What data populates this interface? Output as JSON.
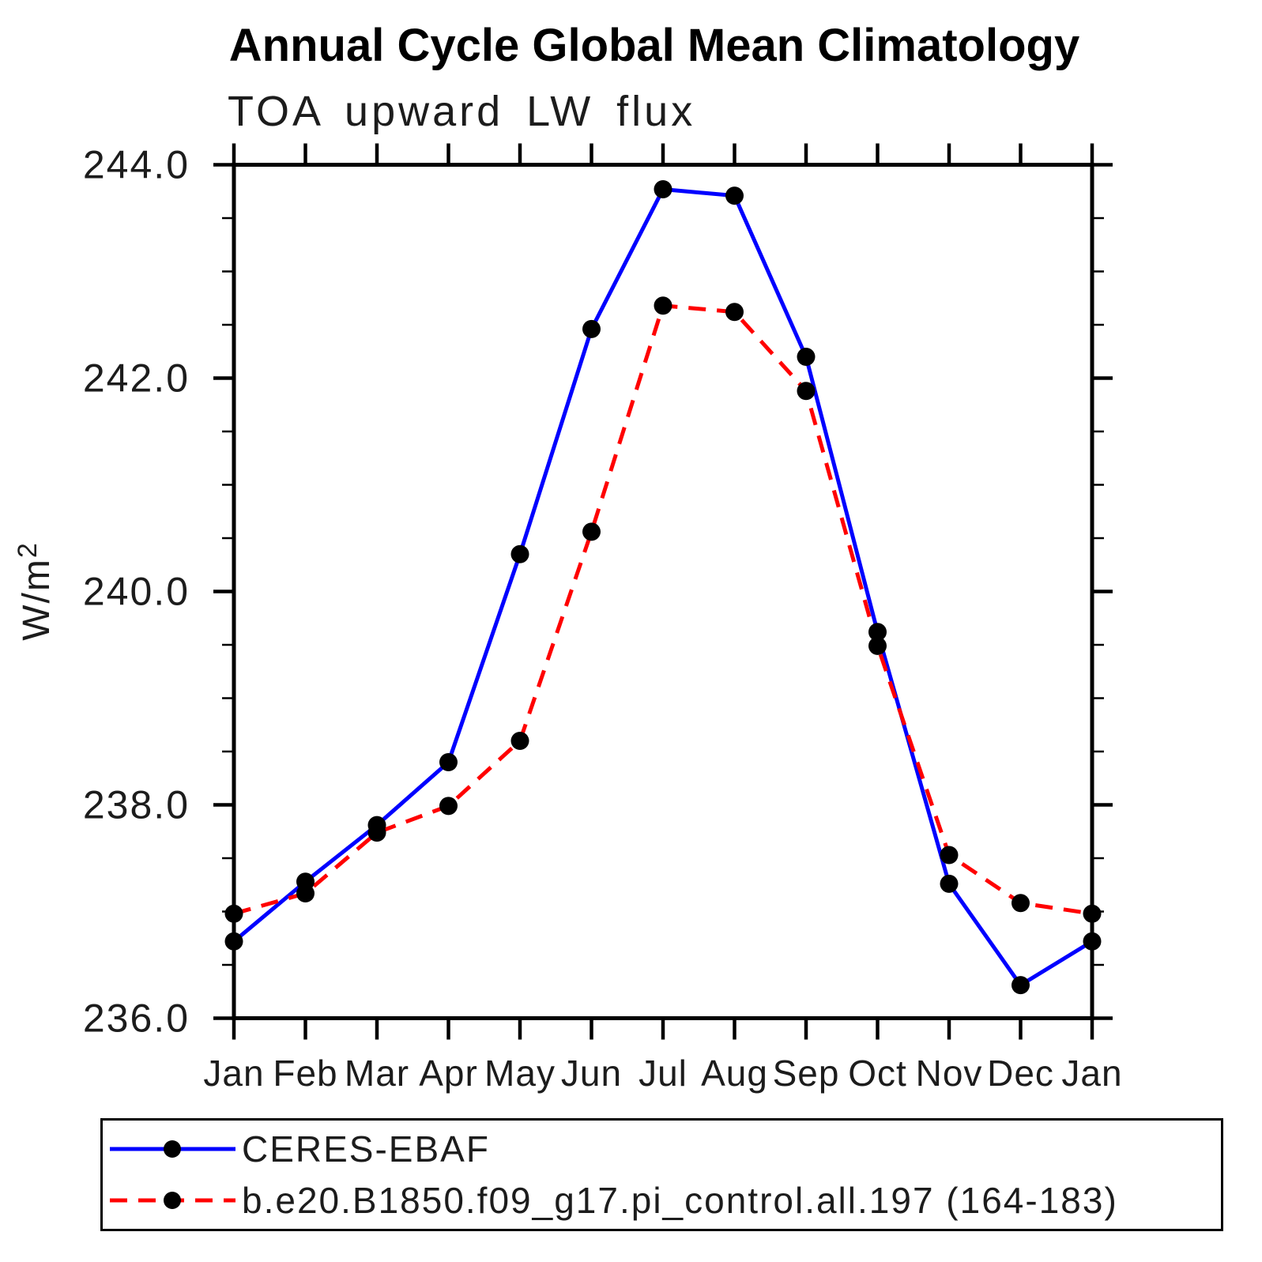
{
  "title": "Annual Cycle Global Mean Climatology",
  "subtitle": "TOA upward LW flux",
  "chart_data": {
    "type": "line",
    "title": "Annual Cycle Global Mean Climatology",
    "subtitle": "TOA upward LW flux",
    "xlabel": "",
    "ylabel": "W/m²",
    "ylim": [
      236.0,
      244.0
    ],
    "y_major_step": 2.0,
    "y_minor_step": 0.5,
    "y_major_ticks": [
      {
        "value": 244.0,
        "label": "244.0"
      },
      {
        "value": 242.0,
        "label": "242.0"
      },
      {
        "value": 240.0,
        "label": "240.0"
      },
      {
        "value": 238.0,
        "label": "238.0"
      },
      {
        "value": 236.0,
        "label": "236.0"
      }
    ],
    "categories": [
      "Jan",
      "Feb",
      "Mar",
      "Apr",
      "May",
      "Jun",
      "Jul",
      "Aug",
      "Sep",
      "Oct",
      "Nov",
      "Dec",
      "Jan"
    ],
    "grid": false,
    "legend_position": "bottom",
    "series": [
      {
        "name": "CERES-EBAF",
        "color": "#0000ff",
        "line_style": "solid",
        "marker": "filled-circle",
        "marker_color": "#000000",
        "values": [
          236.72,
          237.28,
          237.81,
          238.4,
          240.35,
          242.46,
          243.77,
          243.71,
          242.2,
          239.62,
          237.26,
          236.31,
          236.72
        ]
      },
      {
        "name": "b.e20.B1850.f09_g17.pi_control.all.197 (164-183)",
        "color": "#ff0000",
        "line_style": "dashed",
        "marker": "filled-circle",
        "marker_color": "#000000",
        "values": [
          236.98,
          237.17,
          237.74,
          237.99,
          238.6,
          240.56,
          242.68,
          242.62,
          241.88,
          239.49,
          237.53,
          237.08,
          236.98
        ]
      }
    ]
  },
  "legend": {
    "entries": [
      {
        "label": "CERES-EBAF",
        "color": "#0000ff",
        "style": "solid"
      },
      {
        "label": "b.e20.B1850.f09_g17.pi_control.all.197 (164-183)",
        "color": "#ff0000",
        "style": "dashed"
      }
    ]
  }
}
